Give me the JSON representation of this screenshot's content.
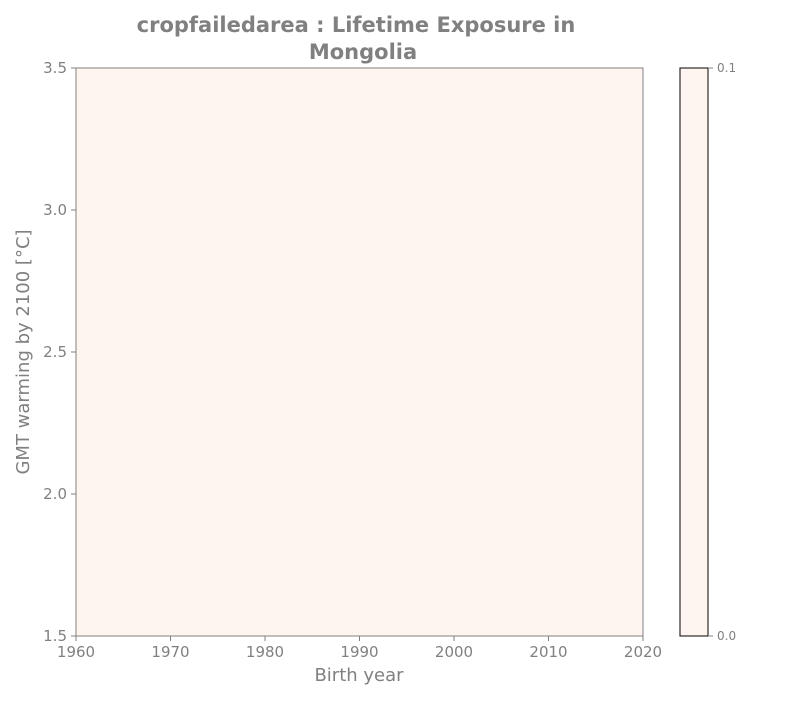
{
  "chart_data": {
    "type": "heatmap",
    "title_line1": "cropfailedarea : Lifetime Exposure in",
    "title_line2": "Mongolia",
    "xlabel": "Birth year",
    "ylabel": "GMT warming by 2100 [°C]",
    "x_ticks": [
      "1960",
      "1970",
      "1980",
      "1990",
      "2000",
      "2010",
      "2020"
    ],
    "x_tick_values": [
      1960,
      1970,
      1980,
      1990,
      2000,
      2010,
      2020
    ],
    "y_ticks": [
      "1.5",
      "2.0",
      "2.5",
      "3.0",
      "3.5"
    ],
    "y_tick_values": [
      1.5,
      2.0,
      2.5,
      3.0,
      3.5
    ],
    "xlim": [
      1960,
      2020
    ],
    "ylim": [
      1.5,
      3.5
    ],
    "grid": false,
    "fill_value": 0.0,
    "fill_color": "#fff5f0",
    "colorbar": {
      "ticks": [
        "0.0",
        "0.1"
      ],
      "tick_values": [
        0.0,
        0.1
      ],
      "range": [
        0.0,
        0.1
      ],
      "color_low": "#fff5f0",
      "color_high": "#fff5f0"
    },
    "text_color": "#808080",
    "axis_color": "#808080"
  }
}
